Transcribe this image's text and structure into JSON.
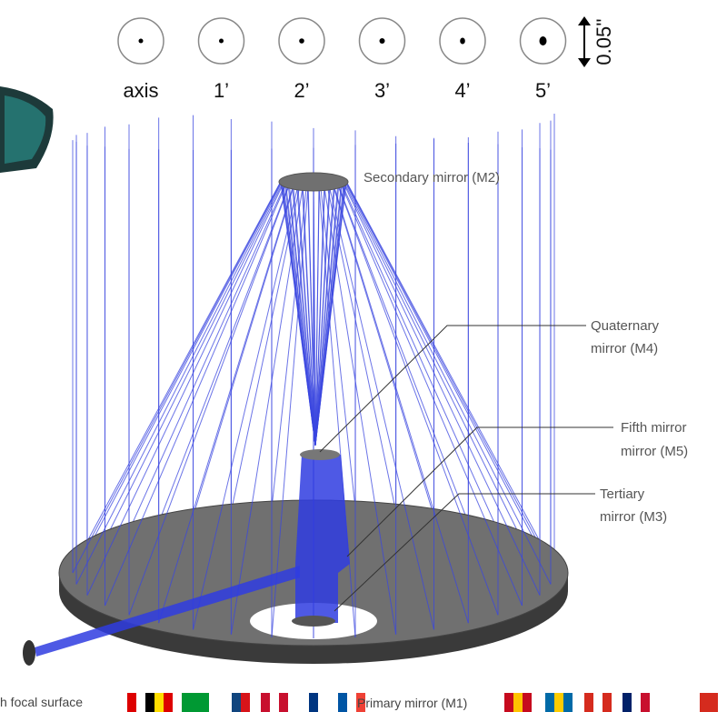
{
  "spot_diagram": {
    "labels": [
      "axis",
      "1’",
      "2’",
      "3’",
      "4’",
      "5’"
    ],
    "scale_label": "0.05''"
  },
  "labels": {
    "secondary": "Secondary mirror (M2)",
    "quaternary": [
      "Quaternary",
      "mirror (M4)"
    ],
    "fifth": [
      "Fifth mirror",
      "mirror (M5)"
    ],
    "tertiary": [
      "Tertiary",
      "mirror (M3)"
    ]
  },
  "footer": {
    "focal_surface": "h focal surface",
    "primary": "Primary mirror (M1)"
  }
}
